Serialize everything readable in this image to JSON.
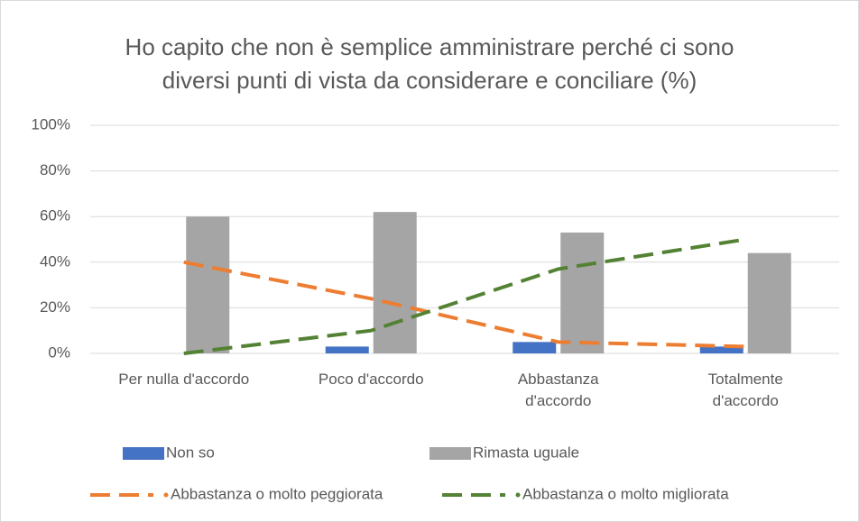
{
  "chart_data": {
    "type": "bar",
    "title": "Ho capito che non è semplice amministrare perché ci sono diversi punti di vista da considerare e conciliare (%)",
    "categories": [
      "Per nulla d'accordo",
      "Poco d'accordo",
      "Abbastanza d'accordo",
      "Totalmente d'accordo"
    ],
    "series": [
      {
        "name": "Non so",
        "type": "bar",
        "color": "#4472c4",
        "values": [
          0,
          3,
          5,
          3
        ]
      },
      {
        "name": "Rimasta uguale",
        "type": "bar",
        "color": "#a5a5a5",
        "values": [
          60,
          62,
          53,
          44
        ]
      },
      {
        "name": "Abbastanza o molto peggiorata",
        "type": "line",
        "color": "#ed7d31",
        "values": [
          40,
          24,
          5,
          3
        ]
      },
      {
        "name": "Abbastanza o molto migliorata",
        "type": "line",
        "color": "#548235",
        "values": [
          0,
          10,
          37,
          50
        ]
      }
    ],
    "ylim": [
      0,
      100
    ],
    "yticks": [
      {
        "value": 0,
        "label": "0%"
      },
      {
        "value": 20,
        "label": "20%"
      },
      {
        "value": 40,
        "label": "40%"
      },
      {
        "value": 60,
        "label": "60%"
      },
      {
        "value": 80,
        "label": "80%"
      },
      {
        "value": 100,
        "label": "100%"
      }
    ],
    "grid": true,
    "legend": "bottom"
  }
}
